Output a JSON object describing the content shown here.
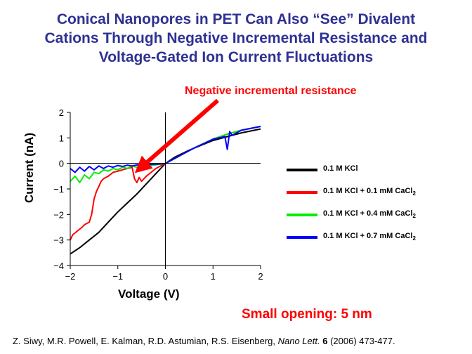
{
  "title": {
    "line1": "Conical Nanopores in PET Can Also “See” Divalent",
    "line2": "Cations Through Negative Incremental Resistance and",
    "line3": "Voltage-Gated Ion Current Fluctuations"
  },
  "annotation": "Negative incremental resistance",
  "small_opening": "Small opening: 5 nm",
  "citation": {
    "authors": "Z. Siwy, M.R. Powell, E. Kalman, R.D. Astumian, R.S. Eisenberg, ",
    "journal": "Nano Lett.",
    "volume": "6",
    "rest": " (2006) 473-477."
  },
  "chart_data": {
    "type": "line",
    "xlabel": "Voltage (V)",
    "ylabel": "Current (nA)",
    "xlim": [
      -2,
      2
    ],
    "ylim": [
      -4,
      2
    ],
    "xticks": [
      -2,
      -1,
      0,
      1,
      2
    ],
    "yticks": [
      -4,
      -3,
      -2,
      -1,
      0,
      1,
      2
    ],
    "xtick_labels": [
      "−2",
      "−1",
      "0",
      "1",
      "2"
    ],
    "ytick_labels": [
      "−4",
      "−3",
      "−2",
      "−1",
      "0",
      "1",
      "2"
    ],
    "grid": false,
    "legend_position": "right",
    "series": [
      {
        "name": "0.1 M KCl",
        "name_parts": [
          "0.1 M KCl",
          ""
        ],
        "color": "#000000",
        "x": [
          -2.0,
          -1.8,
          -1.6,
          -1.4,
          -1.2,
          -1.0,
          -0.8,
          -0.6,
          -0.4,
          -0.2,
          0.0,
          0.2,
          0.5,
          0.8,
          1.0,
          1.3,
          1.6,
          2.0
        ],
        "y": [
          -3.55,
          -3.3,
          -3.0,
          -2.7,
          -2.3,
          -1.9,
          -1.55,
          -1.2,
          -0.8,
          -0.4,
          0.0,
          0.25,
          0.52,
          0.75,
          0.9,
          1.05,
          1.2,
          1.35
        ]
      },
      {
        "name": "0.1 M KCl + 0.1 mM CaCl2",
        "name_parts": [
          "0.1 M KCl + 0.1 mM CaCl",
          "2"
        ],
        "color": "#ff0000",
        "x": [
          -2.0,
          -1.95,
          -1.85,
          -1.75,
          -1.7,
          -1.6,
          -1.55,
          -1.5,
          -1.45,
          -1.4,
          -1.35,
          -1.3,
          -1.2,
          -1.1,
          -1.0,
          -0.9,
          -0.8,
          -0.7,
          -0.65,
          -0.6,
          -0.55,
          -0.5,
          -0.4,
          -0.3,
          -0.2,
          -0.1,
          0.0,
          0.3,
          0.6,
          1.0,
          1.3,
          1.6,
          2.0
        ],
        "y": [
          -3.0,
          -2.8,
          -2.65,
          -2.5,
          -2.4,
          -2.3,
          -2.0,
          -1.4,
          -1.1,
          -0.9,
          -0.7,
          -0.6,
          -0.5,
          -0.35,
          -0.3,
          -0.25,
          -0.2,
          -0.15,
          -0.6,
          -0.75,
          -0.55,
          -0.7,
          -0.5,
          -0.35,
          -0.2,
          -0.1,
          0.0,
          0.3,
          0.6,
          0.95,
          1.15,
          1.3,
          1.45
        ]
      },
      {
        "name": "0.1 M KCl + 0.4 mM CaCl2",
        "name_parts": [
          "0.1 M KCl + 0.4 mM CaCl",
          "2"
        ],
        "color": "#00ee00",
        "x": [
          -2.0,
          -1.9,
          -1.8,
          -1.7,
          -1.6,
          -1.5,
          -1.4,
          -1.3,
          -1.2,
          -1.1,
          -1.0,
          -0.9,
          -0.8,
          -0.7,
          -0.6,
          -0.5,
          -0.4,
          -0.3,
          -0.2,
          -0.1,
          0.0,
          0.3,
          0.6,
          1.0,
          1.3,
          1.6,
          2.0
        ],
        "y": [
          -0.7,
          -0.5,
          -0.75,
          -0.45,
          -0.6,
          -0.35,
          -0.4,
          -0.25,
          -0.3,
          -0.2,
          -0.25,
          -0.15,
          -0.2,
          -0.1,
          -0.15,
          -0.1,
          -0.12,
          -0.08,
          -0.06,
          -0.03,
          0.0,
          0.3,
          0.6,
          0.95,
          1.15,
          1.3,
          1.45
        ]
      },
      {
        "name": "0.1 M KCl + 0.7 mM CaCl2",
        "name_parts": [
          "0.1 M KCl + 0.7 mM CaCl",
          "2"
        ],
        "color": "#0000ff",
        "x": [
          -2.0,
          -1.9,
          -1.8,
          -1.7,
          -1.6,
          -1.5,
          -1.4,
          -1.3,
          -1.2,
          -1.1,
          -1.0,
          -0.9,
          -0.8,
          -0.7,
          -0.6,
          -0.5,
          -0.4,
          -0.3,
          -0.2,
          -0.1,
          0.0,
          0.3,
          0.6,
          1.0,
          1.25,
          1.3,
          1.35,
          1.4,
          1.6,
          2.0
        ],
        "y": [
          -0.2,
          -0.35,
          -0.15,
          -0.3,
          -0.12,
          -0.25,
          -0.1,
          -0.2,
          -0.1,
          -0.15,
          -0.08,
          -0.12,
          -0.07,
          -0.1,
          -0.06,
          -0.08,
          -0.05,
          -0.04,
          -0.03,
          -0.02,
          0.0,
          0.3,
          0.6,
          0.95,
          1.05,
          0.55,
          1.25,
          1.1,
          1.3,
          1.45
        ]
      }
    ]
  }
}
